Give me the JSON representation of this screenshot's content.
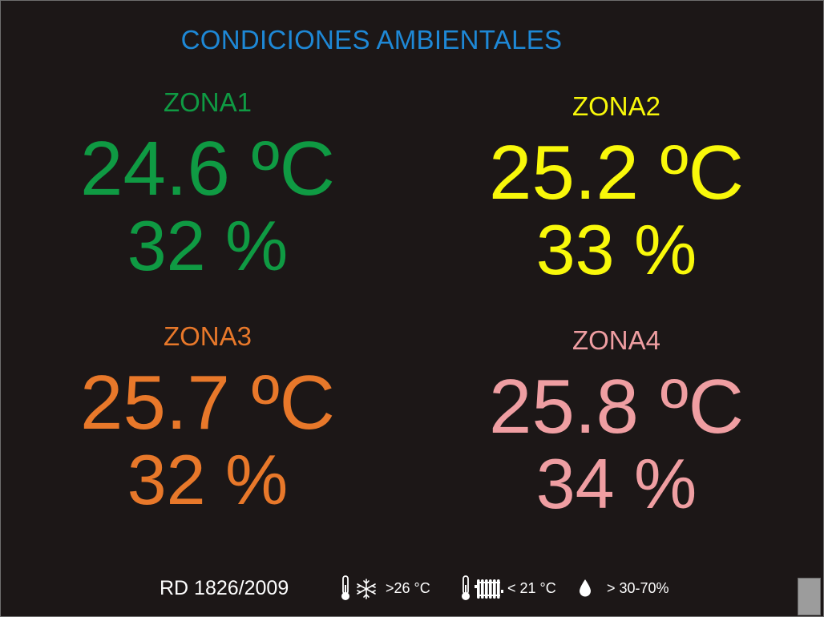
{
  "title": "CONDICIONES AMBIENTALES",
  "zones": [
    {
      "label": "ZONA1",
      "temperature": "24.6 ºC",
      "humidity": "32 %",
      "color": "#0f9a43"
    },
    {
      "label": "ZONA2",
      "temperature": "25.2 ºC",
      "humidity": "33 %",
      "color": "#f8f80a"
    },
    {
      "label": "ZONA3",
      "temperature": "25.7 ºC",
      "humidity": "32 %",
      "color": "#e8782a"
    },
    {
      "label": "ZONA4",
      "temperature": "25.8 ºC",
      "humidity": "34 %",
      "color": "#ef9ea2"
    }
  ],
  "footer": {
    "regulation": "RD 1826/2009",
    "cooling_limit": ">26 °C",
    "heating_limit": "< 21 °C",
    "humidity_range": "> 30-70%",
    "icons": [
      "thermometer-icon",
      "snowflake-icon",
      "thermometer-icon",
      "radiator-icon",
      "water-drop-icon"
    ]
  },
  "colors": {
    "background": "#1c1717",
    "title": "#1e88d6",
    "footer_text": "#ffffff"
  }
}
